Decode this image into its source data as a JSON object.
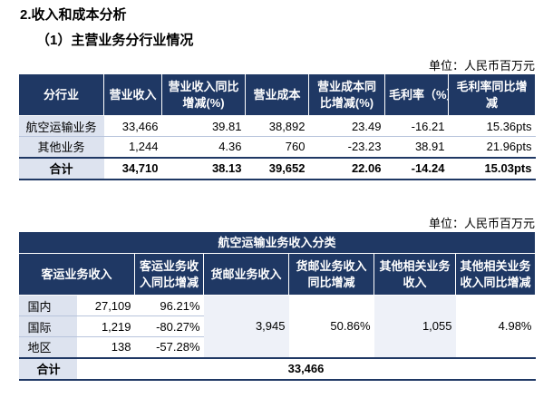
{
  "heading": "2.收入和成本分析",
  "subheading": "（1）主营业务分行业情况",
  "unit_label": "单位：人民币百万元",
  "table1": {
    "headers": [
      "分行业",
      "营业收入",
      "营业收入同比增减(%)",
      "营业成本",
      "营业成本同比增减(%)",
      "毛利率（%）",
      "毛利率同比增减"
    ],
    "rows": [
      [
        "航空运输业务",
        "33,466",
        "39.81",
        "38,892",
        "23.49",
        "-16.21",
        "15.36pts"
      ],
      [
        "其他业务",
        "1,244",
        "4.36",
        "760",
        "-23.23",
        "38.91",
        "21.96pts"
      ]
    ],
    "total": [
      "合计",
      "34,710",
      "38.13",
      "39,652",
      "22.06",
      "-14.24",
      "15.03pts"
    ]
  },
  "table2": {
    "title": "航空运输业务收入分类",
    "headers": [
      "客运业务收入",
      "客运业务收入同比增减",
      "货邮业务收入",
      "货邮业务收入同比增减",
      "其他相关业务收入",
      "其他相关业务收入同比增减"
    ],
    "rows": [
      {
        "region": "国内",
        "passenger": "27,109",
        "passenger_yoy": "96.21%"
      },
      {
        "region": "国际",
        "passenger": "1,219",
        "passenger_yoy": "-80.27%"
      },
      {
        "region": "地区",
        "passenger": "138",
        "passenger_yoy": "-57.28%"
      }
    ],
    "cargo": "3,945",
    "cargo_yoy": "50.86%",
    "other": "1,055",
    "other_yoy": "4.98%",
    "total_label": "合计",
    "total_value": "33,466"
  }
}
